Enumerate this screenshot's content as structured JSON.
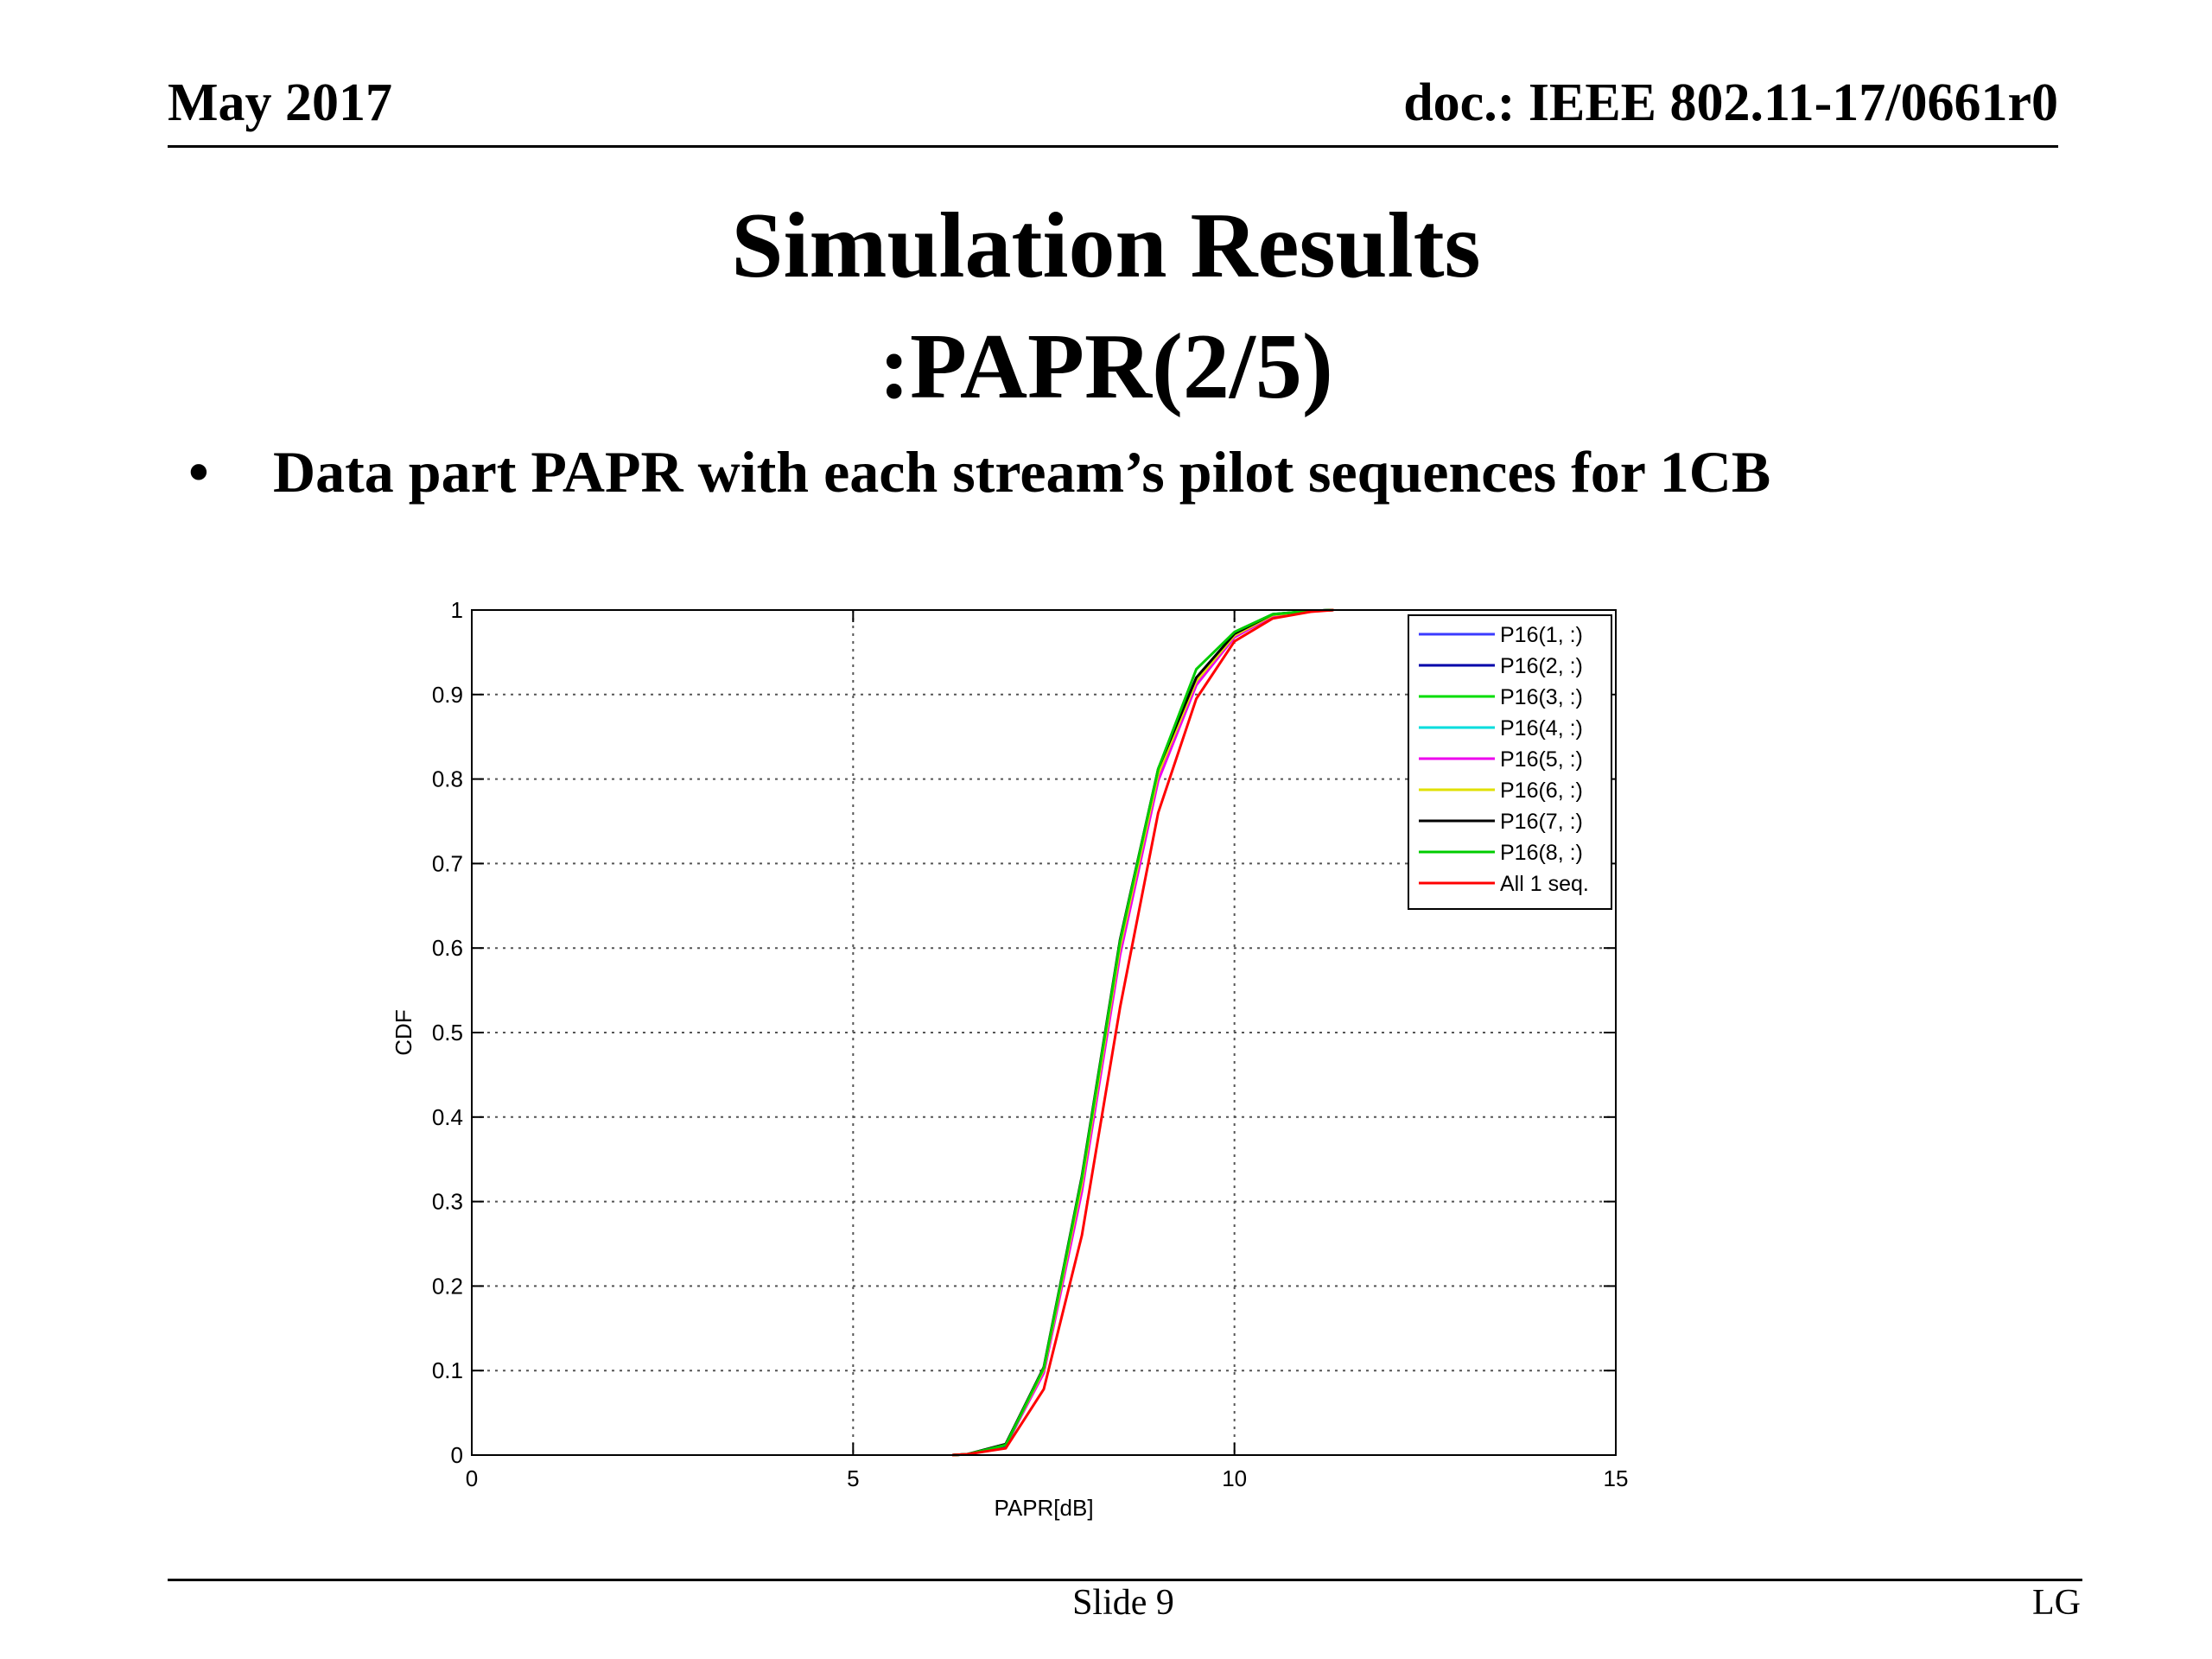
{
  "header": {
    "date": "May 2017",
    "doc": "doc.: IEEE 802.11-17/0661r0"
  },
  "title": {
    "line1": "Simulation Results",
    "line2": ":PAPR(2/5)"
  },
  "bullet": {
    "symbol": "•",
    "text": "Data part PAPR with each stream’s pilot sequences for 1CB"
  },
  "chart_data": {
    "type": "line",
    "title": "",
    "xlabel": "PAPR[dB]",
    "ylabel": "CDF",
    "xlim": [
      0,
      15
    ],
    "ylim": [
      0,
      1
    ],
    "xticks": [
      0,
      5,
      10,
      15
    ],
    "yticks": [
      0,
      0.1,
      0.2,
      0.3,
      0.4,
      0.5,
      0.6,
      0.7,
      0.8,
      0.9,
      1
    ],
    "grid": true,
    "legend_position": "top-right",
    "x": [
      6.3,
      6.5,
      7.0,
      7.5,
      8.0,
      8.5,
      9.0,
      9.5,
      10.0,
      10.5,
      11.0,
      11.3
    ],
    "series": [
      {
        "name": "P16(1, :)",
        "color": "#3b3bff",
        "values": [
          0,
          0.001,
          0.012,
          0.1,
          0.32,
          0.6,
          0.805,
          0.915,
          0.97,
          0.994,
          0.999,
          1
        ]
      },
      {
        "name": "P16(2, :)",
        "color": "#0000aa",
        "values": [
          0,
          0.001,
          0.011,
          0.098,
          0.315,
          0.595,
          0.8,
          0.912,
          0.968,
          0.993,
          0.999,
          1
        ]
      },
      {
        "name": "P16(3, :)",
        "color": "#00dd00",
        "values": [
          0,
          0.001,
          0.013,
          0.102,
          0.325,
          0.605,
          0.808,
          0.918,
          0.97,
          0.994,
          0.999,
          1
        ]
      },
      {
        "name": "P16(4, :)",
        "color": "#00dddd",
        "values": [
          0,
          0.001,
          0.012,
          0.099,
          0.318,
          0.598,
          0.803,
          0.914,
          0.969,
          0.993,
          0.999,
          1
        ]
      },
      {
        "name": "P16(5, :)",
        "color": "#ee00ee",
        "values": [
          0,
          0.001,
          0.012,
          0.097,
          0.312,
          0.592,
          0.798,
          0.911,
          0.968,
          0.993,
          0.999,
          1
        ]
      },
      {
        "name": "P16(6, :)",
        "color": "#e0e000",
        "values": [
          0,
          0.001,
          0.012,
          0.101,
          0.322,
          0.602,
          0.806,
          0.916,
          0.97,
          0.994,
          0.999,
          1
        ]
      },
      {
        "name": "P16(7, :)",
        "color": "#000000",
        "values": [
          0,
          0.001,
          0.013,
          0.104,
          0.33,
          0.61,
          0.812,
          0.92,
          0.972,
          0.995,
          0.999,
          1
        ]
      },
      {
        "name": "P16(8, :)",
        "color": "#00cc00",
        "values": [
          0,
          0.001,
          0.012,
          0.103,
          0.328,
          0.608,
          0.812,
          0.93,
          0.974,
          0.995,
          0.999,
          1
        ]
      },
      {
        "name": "All 1 seq.",
        "color": "#ff0000",
        "values": [
          0,
          0.001,
          0.008,
          0.078,
          0.26,
          0.53,
          0.76,
          0.895,
          0.963,
          0.99,
          0.998,
          1
        ]
      }
    ]
  },
  "footer": {
    "slide": "Slide 9",
    "org": "LG"
  }
}
